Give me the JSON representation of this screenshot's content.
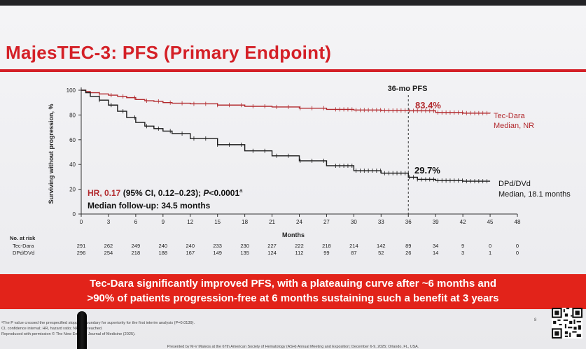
{
  "slide": {
    "title": "MajesTEC-3: PFS (Primary Endpoint)",
    "page_number": "8",
    "banner": {
      "line1": "Tec-Dara significantly improved PFS, with a plateauing curve after ~6 months and",
      "line2": ">90% of patients progression-free at 6 months sustaining such a benefit at 3 years"
    },
    "footnotes": [
      "ᵃThe P value crossed the prespecified stopping boundary for superiority for the first interim analysis (P=0.0139).",
      "CI, confidence interval; HR, hazard ratio; NR, not reached.",
      "Reproduced with permission © The New England Journal of Medicine (2025)."
    ],
    "presented_by": "Presented by M-V Mateos at the 67th American Society of Hematology (ASH) Annual Meeting and Exposition; December 6-9, 2025; Orlando, FL, USA."
  },
  "chart_data": {
    "type": "line",
    "xlabel": "Months",
    "ylabel": "Surviving without progression, %",
    "xlim": [
      0,
      48
    ],
    "ylim": [
      0,
      100
    ],
    "x_ticks": [
      0,
      3,
      6,
      9,
      12,
      15,
      18,
      21,
      24,
      27,
      30,
      33,
      36,
      39,
      42,
      45,
      48
    ],
    "y_ticks": [
      0,
      20,
      40,
      60,
      80,
      100
    ],
    "reference_line": {
      "x": 36,
      "label": "36-mo PFS"
    },
    "series": [
      {
        "name": "Tec-Dara",
        "color": "#b22a2e",
        "end_label": "Tec-Dara",
        "median_label": "Median, NR",
        "value_36mo": "83.4%",
        "points": [
          [
            0,
            100
          ],
          [
            0.5,
            99
          ],
          [
            1,
            98
          ],
          [
            2,
            97
          ],
          [
            3,
            96
          ],
          [
            4,
            95
          ],
          [
            5,
            94
          ],
          [
            6,
            92.5
          ],
          [
            7,
            91.5
          ],
          [
            8,
            91
          ],
          [
            9,
            90
          ],
          [
            10,
            89.5
          ],
          [
            12,
            89
          ],
          [
            15,
            88
          ],
          [
            18,
            87
          ],
          [
            21,
            86.5
          ],
          [
            24,
            85.5
          ],
          [
            27,
            84.5
          ],
          [
            30,
            84
          ],
          [
            33,
            83.6
          ],
          [
            36,
            83.4
          ],
          [
            39,
            82
          ],
          [
            42,
            81.5
          ],
          [
            45,
            81.3
          ]
        ]
      },
      {
        "name": "DPd/DVd",
        "color": "#1a1a1a",
        "end_label": "DPd/DVd",
        "median_label": "Median, 18.1 months",
        "value_36mo": "29.7%",
        "points": [
          [
            0,
            100
          ],
          [
            0.5,
            98
          ],
          [
            1,
            95
          ],
          [
            2,
            92
          ],
          [
            3,
            88
          ],
          [
            4,
            83
          ],
          [
            5,
            78
          ],
          [
            6,
            74
          ],
          [
            7,
            71
          ],
          [
            8,
            69
          ],
          [
            9,
            67
          ],
          [
            10,
            65
          ],
          [
            12,
            61
          ],
          [
            15,
            56
          ],
          [
            18,
            51
          ],
          [
            21,
            47
          ],
          [
            24,
            43
          ],
          [
            27,
            39
          ],
          [
            30,
            35
          ],
          [
            33,
            33
          ],
          [
            36,
            29.7
          ],
          [
            37,
            28
          ],
          [
            39,
            27
          ],
          [
            42,
            26.5
          ],
          [
            45,
            26.5
          ]
        ]
      }
    ],
    "annotations": {
      "hr_label": "HR, 0.17",
      "hr_rest": " (95% CI, 0.12–0.23); ",
      "p_label": "P",
      "p_rest": "<0.0001",
      "p_superscript": "a",
      "followup": "Median follow-up: 34.5 months"
    },
    "risk_table": {
      "header": "No. at risk",
      "rows": [
        {
          "label": "Tec-Dara",
          "values": [
            "291",
            "262",
            "249",
            "240",
            "240",
            "233",
            "230",
            "227",
            "222",
            "218",
            "214",
            "142",
            "89",
            "34",
            "9",
            "0",
            "0"
          ]
        },
        {
          "label": "DPd/DVd",
          "values": [
            "296",
            "254",
            "218",
            "188",
            "167",
            "149",
            "135",
            "124",
            "112",
            "99",
            "87",
            "52",
            "26",
            "14",
            "3",
            "1",
            "0"
          ]
        }
      ]
    }
  }
}
